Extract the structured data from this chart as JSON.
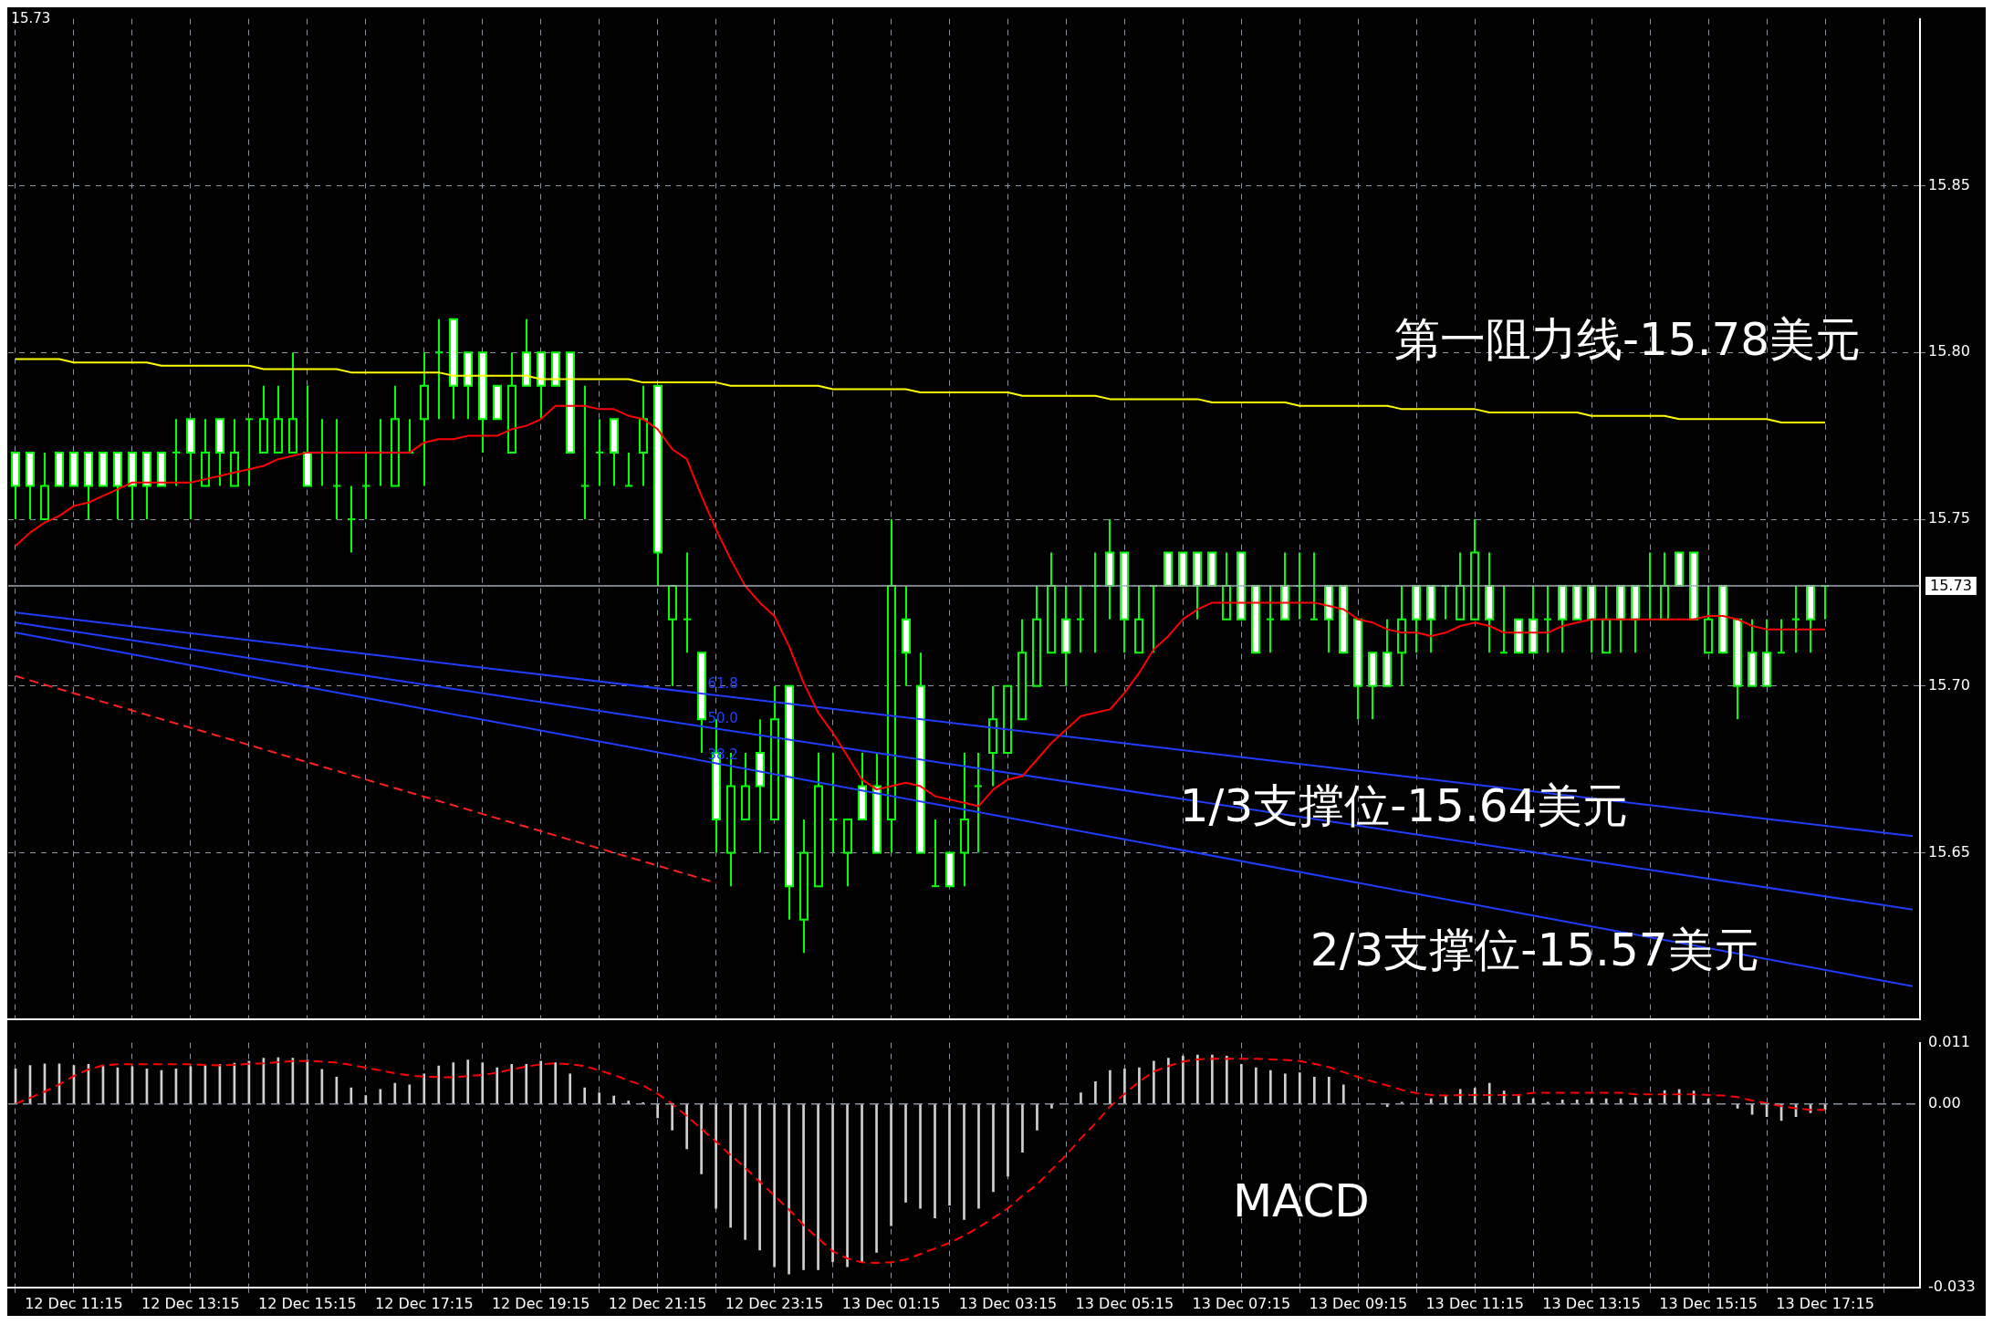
{
  "chart_data": [
    {
      "type": "candlestick",
      "color": "#00ff00",
      "categories": [
        null,
        null,
        null,
        null,
        null,
        null,
        null,
        null,
        null,
        null,
        null,
        null,
        null,
        null,
        null,
        null,
        null,
        null,
        null,
        null,
        null,
        null,
        null,
        null,
        null,
        null,
        null,
        null,
        null,
        null,
        null,
        null,
        null,
        null,
        null,
        null,
        null,
        null,
        null,
        null,
        null,
        null,
        null,
        null,
        null,
        null,
        null,
        null,
        null,
        null,
        null,
        null,
        null,
        null,
        null,
        null,
        null,
        null,
        null,
        null,
        null,
        null,
        null,
        null,
        null,
        null,
        null,
        null,
        null,
        null,
        null,
        null,
        null,
        null,
        null,
        null,
        null,
        null,
        null,
        null,
        null,
        null,
        null,
        null,
        null,
        null,
        null,
        null,
        null,
        null,
        null,
        null,
        null,
        null,
        null,
        null,
        null,
        null,
        null,
        null,
        null,
        null,
        null,
        null,
        null,
        null,
        null,
        null,
        null,
        null,
        null,
        null,
        null,
        null,
        null,
        null,
        null,
        null,
        null,
        null,
        null,
        null,
        null,
        null,
        null,
        null,
        null,
        null,
        null,
        null,
        null
      ],
      "colors": [
        "#ffffff",
        "#ffffff",
        "#000000",
        "#ffffff",
        "#ffffff",
        "#ffffff",
        "#ffffff",
        "#ffffff",
        "#ffffff",
        "#ffffff",
        "#ffffff",
        "#00ff00",
        "#ffffff",
        "#000000",
        "#ffffff",
        "#000000",
        "#00ff00",
        "#000000",
        "#000000",
        "#000000",
        "#ffffff",
        "#00ff00",
        "#00ff00",
        "#00ff00",
        "#00ff00",
        "#00ff00",
        "#000000",
        "#00ff00",
        "#000000",
        "#00ff00",
        "#ffffff",
        "#ffffff",
        "#ffffff",
        "#ffffff",
        "#000000",
        "#ffffff",
        "#ffffff",
        "#ffffff",
        "#ffffff",
        "#00ff00",
        "#00ff00",
        "#ffffff",
        "#00ff00",
        "#000000",
        "#ffffff",
        "#000000",
        "#00ff00",
        "#ffffff",
        "#ffffff",
        "#000000",
        "#000000",
        "#ffffff",
        "#000000",
        "#ffffff",
        "#000000",
        "#000000",
        "#00ff00",
        "#000000",
        "#ffffff",
        "#ffffff",
        "#000000",
        "#ffffff",
        "#ffffff",
        "#00ff00",
        "#ffffff",
        "#000000",
        "#00ff00",
        "#000000",
        "#000000",
        "#000000",
        "#000000",
        "#000000",
        "#ffffff",
        "#00ff00",
        "#00ff00",
        "#ffffff",
        "#ffffff",
        "#000000",
        "#00ff00",
        "#ffffff",
        "#ffffff",
        "#ffffff",
        "#ffffff",
        "#000000",
        "#ffffff",
        "#ffffff",
        "#00ff00",
        "#ffffff",
        "#00ff00",
        "#00ff00",
        "#ffffff",
        "#ffffff",
        "#ffffff",
        "#ffffff",
        "#ffffff",
        "#000000",
        "#ffffff",
        "#ffffff",
        "#00ff00",
        "#000000",
        "#000000",
        "#ffffff",
        "#00ff00",
        "#ffffff",
        "#ffffff",
        "#00ff00",
        "#ffffff",
        "#ffffff",
        "#ffffff",
        "#000000",
        "#ffffff",
        "#ffffff",
        "#00ff00",
        "#000000",
        "#ffffff",
        "#ffffff",
        "#000000",
        "#ffffff",
        "#ffffff",
        "#ffffff",
        "#ffffff",
        "#00ff00",
        "#00ff00",
        "#ffffff",
        "#00ff00",
        null,
        null,
        null,
        null,
        null,
        null
      ],
      "ohlc": [
        [
          15.77,
          15.77,
          15.75,
          15.76
        ],
        [
          15.77,
          15.77,
          15.75,
          15.76
        ],
        [
          15.75,
          15.77,
          15.75,
          15.76
        ],
        [
          15.77,
          15.77,
          15.76,
          15.76
        ],
        [
          15.77,
          15.77,
          15.76,
          15.76
        ],
        [
          15.77,
          15.77,
          15.75,
          15.76
        ],
        [
          15.77,
          15.77,
          15.76,
          15.76
        ],
        [
          15.77,
          15.77,
          15.75,
          15.76
        ],
        [
          15.77,
          15.77,
          15.75,
          15.76
        ],
        [
          15.77,
          15.77,
          15.75,
          15.76
        ],
        [
          15.77,
          15.77,
          15.76,
          15.76
        ],
        [
          15.77,
          15.78,
          15.76,
          15.77
        ],
        [
          15.78,
          15.78,
          15.75,
          15.77
        ],
        [
          15.76,
          15.78,
          15.76,
          15.77
        ],
        [
          15.78,
          15.78,
          15.76,
          15.77
        ],
        [
          15.76,
          15.78,
          15.76,
          15.77
        ],
        [
          15.78,
          15.78,
          15.76,
          15.78
        ],
        [
          15.77,
          15.79,
          15.77,
          15.78
        ],
        [
          15.77,
          15.79,
          15.77,
          15.78
        ],
        [
          15.77,
          15.8,
          15.77,
          15.78
        ],
        [
          15.77,
          15.79,
          15.76,
          15.76
        ],
        [
          15.77,
          15.78,
          15.76,
          15.77
        ],
        [
          15.76,
          15.78,
          15.75,
          15.76
        ],
        [
          15.75,
          15.76,
          15.74,
          15.75
        ],
        [
          15.76,
          15.77,
          15.75,
          15.76
        ],
        [
          15.77,
          15.78,
          15.76,
          15.77
        ],
        [
          15.76,
          15.79,
          15.76,
          15.78
        ],
        [
          15.77,
          15.78,
          15.77,
          15.77
        ],
        [
          15.78,
          15.8,
          15.76,
          15.79
        ],
        [
          15.8,
          15.81,
          15.78,
          15.8
        ],
        [
          15.81,
          15.81,
          15.78,
          15.79
        ],
        [
          15.8,
          15.8,
          15.78,
          15.79
        ],
        [
          15.8,
          15.8,
          15.77,
          15.78
        ],
        [
          15.79,
          15.79,
          15.78,
          15.78
        ],
        [
          15.77,
          15.8,
          15.77,
          15.79
        ],
        [
          15.8,
          15.81,
          15.79,
          15.79
        ],
        [
          15.8,
          15.8,
          15.78,
          15.79
        ],
        [
          15.8,
          15.8,
          15.79,
          15.79
        ],
        [
          15.8,
          15.8,
          15.77,
          15.77
        ],
        [
          15.76,
          15.79,
          15.75,
          15.76
        ],
        [
          15.77,
          15.78,
          15.76,
          15.77
        ],
        [
          15.78,
          15.78,
          15.76,
          15.77
        ],
        [
          15.76,
          15.77,
          15.76,
          15.76
        ],
        [
          15.77,
          15.79,
          15.76,
          15.78
        ],
        [
          15.79,
          15.79,
          15.73,
          15.74
        ],
        [
          15.72,
          15.73,
          15.7,
          15.73
        ],
        [
          15.72,
          15.74,
          15.71,
          15.72
        ],
        [
          15.71,
          15.71,
          15.68,
          15.69
        ],
        [
          15.68,
          15.69,
          15.65,
          15.66
        ],
        [
          15.65,
          15.68,
          15.64,
          15.67
        ],
        [
          15.66,
          15.68,
          15.66,
          15.67
        ],
        [
          15.68,
          15.69,
          15.65,
          15.67
        ],
        [
          15.66,
          15.7,
          15.66,
          15.69
        ],
        [
          15.7,
          15.7,
          15.63,
          15.64
        ],
        [
          15.63,
          15.66,
          15.62,
          15.65
        ],
        [
          15.64,
          15.68,
          15.64,
          15.67
        ],
        [
          15.66,
          15.68,
          15.65,
          15.66
        ],
        [
          15.65,
          15.66,
          15.64,
          15.66
        ],
        [
          15.67,
          15.68,
          15.66,
          15.66
        ],
        [
          15.67,
          15.68,
          15.65,
          15.65
        ],
        [
          15.66,
          15.75,
          15.65,
          15.73
        ],
        [
          15.72,
          15.73,
          15.7,
          15.71
        ],
        [
          15.7,
          15.71,
          15.65,
          15.65
        ],
        [
          15.64,
          15.66,
          15.64,
          15.64
        ],
        [
          15.65,
          15.65,
          15.64,
          15.64
        ],
        [
          15.65,
          15.68,
          15.64,
          15.66
        ],
        [
          15.67,
          15.68,
          15.65,
          15.67
        ],
        [
          15.68,
          15.7,
          15.67,
          15.69
        ],
        [
          15.68,
          15.7,
          15.68,
          15.7
        ],
        [
          15.69,
          15.72,
          15.69,
          15.71
        ],
        [
          15.7,
          15.73,
          15.7,
          15.72
        ],
        [
          15.71,
          15.74,
          15.71,
          15.73
        ],
        [
          15.72,
          15.73,
          15.7,
          15.71
        ],
        [
          15.72,
          15.73,
          15.71,
          15.72
        ],
        [
          15.73,
          15.74,
          15.71,
          15.73
        ],
        [
          15.74,
          15.75,
          15.72,
          15.73
        ],
        [
          15.74,
          15.74,
          15.71,
          15.72
        ],
        [
          15.71,
          15.73,
          15.71,
          15.72
        ],
        [
          15.73,
          15.73,
          15.71,
          15.73
        ],
        [
          15.74,
          15.74,
          15.73,
          15.73
        ],
        [
          15.74,
          15.74,
          15.73,
          15.73
        ],
        [
          15.74,
          15.74,
          15.72,
          15.73
        ],
        [
          15.74,
          15.74,
          15.73,
          15.73
        ],
        [
          15.72,
          15.74,
          15.72,
          15.73
        ],
        [
          15.74,
          15.74,
          15.72,
          15.72
        ],
        [
          15.73,
          15.73,
          15.71,
          15.71
        ],
        [
          15.72,
          15.73,
          15.71,
          15.72
        ],
        [
          15.73,
          15.74,
          15.72,
          15.72
        ],
        [
          15.73,
          15.74,
          15.72,
          15.73
        ],
        [
          15.72,
          15.74,
          15.72,
          15.72
        ],
        [
          15.73,
          15.73,
          15.71,
          15.72
        ],
        [
          15.73,
          15.73,
          15.71,
          15.71
        ],
        [
          15.72,
          15.72,
          15.69,
          15.7
        ],
        [
          15.71,
          15.71,
          15.69,
          15.7
        ],
        [
          15.71,
          15.72,
          15.7,
          15.7
        ],
        [
          15.71,
          15.73,
          15.7,
          15.72
        ],
        [
          15.73,
          15.73,
          15.71,
          15.72
        ],
        [
          15.73,
          15.73,
          15.71,
          15.72
        ],
        [
          15.73,
          15.73,
          15.72,
          15.73
        ],
        [
          15.72,
          15.74,
          15.72,
          15.73
        ],
        [
          15.72,
          15.75,
          15.72,
          15.74
        ],
        [
          15.73,
          15.74,
          15.71,
          15.72
        ],
        [
          15.71,
          15.73,
          15.71,
          15.71
        ],
        [
          15.72,
          15.72,
          15.71,
          15.71
        ],
        [
          15.72,
          15.73,
          15.71,
          15.71
        ],
        [
          15.72,
          15.73,
          15.71,
          15.72
        ],
        [
          15.73,
          15.73,
          15.71,
          15.72
        ],
        [
          15.73,
          15.73,
          15.72,
          15.72
        ],
        [
          15.73,
          15.73,
          15.71,
          15.72
        ],
        [
          15.71,
          15.73,
          15.71,
          15.72
        ],
        [
          15.73,
          15.73,
          15.71,
          15.72
        ],
        [
          15.73,
          15.73,
          15.71,
          15.72
        ],
        [
          15.73,
          15.74,
          15.72,
          15.73
        ],
        [
          15.72,
          15.74,
          15.72,
          15.73
        ],
        [
          15.74,
          15.74,
          15.73,
          15.73
        ],
        [
          15.74,
          15.74,
          15.72,
          15.72
        ],
        [
          15.71,
          15.73,
          15.71,
          15.72
        ],
        [
          15.73,
          15.73,
          15.71,
          15.71
        ],
        [
          15.72,
          15.72,
          15.69,
          15.7
        ],
        [
          15.71,
          15.72,
          15.7,
          15.7
        ],
        [
          15.71,
          15.72,
          15.7,
          15.7
        ],
        [
          15.71,
          15.72,
          15.71,
          15.71
        ],
        [
          15.72,
          15.73,
          15.71,
          15.72
        ],
        [
          15.73,
          15.73,
          15.71,
          15.72
        ],
        [
          15.73,
          15.73,
          15.72,
          15.73
        ],
        null,
        null,
        null,
        null,
        null,
        null
      ],
      "series": [
        {
          "type": "line",
          "color": "#ffff00",
          "values": [
            15.798,
            15.798,
            15.798,
            15.798,
            15.797,
            15.797,
            15.797,
            15.797,
            15.797,
            15.797,
            15.796,
            15.796,
            15.796,
            15.796,
            15.796,
            15.796,
            15.796,
            15.795,
            15.795,
            15.795,
            15.795,
            15.795,
            15.795,
            15.794,
            15.794,
            15.794,
            15.794,
            15.794,
            15.794,
            15.794,
            15.793,
            15.793,
            15.793,
            15.793,
            15.793,
            15.793,
            15.792,
            15.792,
            15.792,
            15.792,
            15.792,
            15.792,
            15.792,
            15.791,
            15.791,
            15.791,
            15.791,
            15.791,
            15.791,
            15.79,
            15.79,
            15.79,
            15.79,
            15.79,
            15.79,
            15.79,
            15.789,
            15.789,
            15.789,
            15.789,
            15.789,
            15.789,
            15.788,
            15.788,
            15.788,
            15.788,
            15.788,
            15.788,
            15.788,
            15.787,
            15.787,
            15.787,
            15.787,
            15.787,
            15.787,
            15.786,
            15.786,
            15.786,
            15.786,
            15.786,
            15.786,
            15.786,
            15.785,
            15.785,
            15.785,
            15.785,
            15.785,
            15.785,
            15.784,
            15.784,
            15.784,
            15.784,
            15.784,
            15.784,
            15.784,
            15.783,
            15.783,
            15.783,
            15.783,
            15.783,
            15.783,
            15.782,
            15.782,
            15.782,
            15.782,
            15.782,
            15.782,
            15.782,
            15.781,
            15.781,
            15.781,
            15.781,
            15.781,
            15.781,
            15.78,
            15.78,
            15.78,
            15.78,
            15.78,
            15.78,
            15.78,
            15.779,
            15.779,
            15.779,
            15.779,
            null,
            null,
            null,
            null,
            null,
            null
          ]
        },
        {
          "type": "line",
          "color": "#ff0000",
          "values": [
            15.742,
            15.746,
            15.749,
            15.751,
            15.754,
            15.755,
            15.757,
            15.759,
            15.761,
            15.761,
            15.761,
            15.761,
            15.761,
            15.762,
            15.763,
            15.764,
            15.765,
            15.766,
            15.768,
            15.769,
            15.77,
            15.77,
            15.77,
            15.77,
            15.77,
            15.77,
            15.77,
            15.77,
            15.773,
            15.774,
            15.774,
            15.775,
            15.775,
            15.775,
            15.777,
            15.778,
            15.78,
            15.784,
            15.784,
            15.784,
            15.783,
            15.783,
            15.781,
            15.78,
            15.777,
            15.771,
            15.768,
            15.757,
            15.747,
            15.738,
            15.73,
            15.725,
            15.721,
            15.712,
            15.701,
            15.692,
            15.686,
            15.679,
            15.672,
            15.669,
            15.67,
            15.671,
            15.67,
            15.667,
            15.666,
            15.665,
            15.664,
            15.669,
            15.672,
            15.673,
            15.678,
            15.683,
            15.687,
            15.691,
            15.692,
            15.693,
            15.698,
            15.704,
            15.711,
            15.715,
            15.72,
            15.723,
            15.725,
            15.725,
            15.725,
            15.725,
            15.725,
            15.725,
            15.725,
            15.725,
            15.724,
            15.723,
            15.72,
            15.719,
            15.717,
            15.716,
            15.716,
            15.715,
            15.716,
            15.718,
            15.719,
            15.718,
            15.716,
            15.716,
            15.716,
            15.716,
            15.718,
            15.719,
            15.72,
            15.72,
            15.72,
            15.72,
            15.72,
            15.72,
            15.72,
            15.72,
            15.721,
            15.721,
            15.72,
            15.718,
            15.717,
            15.717,
            15.717,
            15.717,
            15.717,
            null,
            null,
            null,
            null,
            null,
            null
          ]
        },
        {
          "type": "line",
          "color": "#ff2020",
          "line_style": "dashed",
          "values": [
            15.703,
            null,
            null,
            null,
            null,
            null,
            null,
            null,
            null,
            null,
            null,
            null,
            null,
            null,
            null,
            null,
            null,
            null,
            null,
            null,
            null,
            null,
            null,
            null,
            null,
            null,
            null,
            null,
            null,
            null,
            null,
            null,
            null,
            null,
            null,
            null,
            null,
            null,
            null,
            null,
            null,
            null,
            null,
            null,
            null,
            null,
            null,
            null,
            15.641,
            null,
            null,
            null,
            null,
            null,
            null,
            null,
            null,
            null,
            null,
            null,
            null,
            null,
            null,
            null,
            null,
            null,
            null,
            null,
            null,
            null,
            null,
            null,
            null,
            null,
            null,
            null,
            null,
            null,
            null,
            null,
            null,
            null,
            null,
            null,
            null,
            null,
            null,
            null,
            null,
            null,
            null,
            null,
            null,
            null,
            null,
            null,
            null,
            null,
            null,
            null,
            null,
            null,
            null,
            null,
            null,
            null,
            null,
            null,
            null,
            null,
            null,
            null,
            null,
            null,
            null,
            null,
            null,
            null,
            null,
            null,
            null,
            null,
            null,
            null,
            null,
            null,
            null,
            null,
            null,
            null,
            null
          ]
        },
        {
          "type": "line",
          "color": "#1f3dff",
          "values": [
            15.722,
            null,
            null,
            null,
            null,
            null,
            null,
            null,
            null,
            null,
            null,
            null,
            null,
            null,
            null,
            null,
            null,
            null,
            null,
            null,
            null,
            null,
            null,
            null,
            null,
            null,
            null,
            null,
            null,
            null,
            null,
            null,
            null,
            null,
            null,
            null,
            null,
            null,
            null,
            null,
            null,
            null,
            null,
            null,
            null,
            null,
            null,
            null,
            null,
            null,
            null,
            null,
            null,
            null,
            null,
            null,
            null,
            null,
            null,
            null,
            null,
            null,
            null,
            null,
            null,
            null,
            null,
            null,
            null,
            null,
            null,
            null,
            null,
            null,
            null,
            null,
            null,
            null,
            null,
            null,
            null,
            null,
            null,
            null,
            null,
            null,
            null,
            null,
            null,
            null,
            null,
            null,
            null,
            null,
            null,
            null,
            null,
            null,
            null,
            null,
            null,
            null,
            null,
            null,
            null,
            null,
            null,
            null,
            null,
            null,
            null,
            null,
            null,
            null,
            null,
            null,
            null,
            null,
            null,
            null,
            null,
            null,
            null,
            null,
            null,
            null,
            null,
            null,
            null,
            null,
            15.655
          ]
        },
        {
          "type": "line",
          "color": "#1f3dff",
          "values": [
            15.719,
            null,
            null,
            null,
            null,
            null,
            null,
            null,
            null,
            null,
            null,
            null,
            null,
            null,
            null,
            null,
            null,
            null,
            null,
            null,
            null,
            null,
            null,
            null,
            null,
            null,
            null,
            null,
            null,
            null,
            null,
            null,
            null,
            null,
            null,
            null,
            null,
            null,
            null,
            null,
            null,
            null,
            null,
            null,
            null,
            null,
            null,
            null,
            null,
            null,
            null,
            null,
            null,
            null,
            null,
            null,
            null,
            null,
            null,
            null,
            null,
            null,
            null,
            null,
            null,
            null,
            null,
            null,
            null,
            null,
            null,
            null,
            null,
            null,
            null,
            null,
            null,
            null,
            null,
            null,
            null,
            null,
            null,
            null,
            null,
            null,
            null,
            null,
            null,
            null,
            null,
            null,
            null,
            null,
            null,
            null,
            null,
            null,
            null,
            null,
            null,
            null,
            null,
            null,
            null,
            null,
            null,
            null,
            null,
            null,
            null,
            null,
            null,
            null,
            null,
            null,
            null,
            null,
            null,
            null,
            null,
            null,
            null,
            null,
            null,
            null,
            null,
            null,
            null,
            null,
            15.633
          ]
        },
        {
          "type": "line",
          "color": "#1f3dff",
          "values": [
            15.716,
            null,
            null,
            null,
            null,
            null,
            null,
            null,
            null,
            null,
            null,
            null,
            null,
            null,
            null,
            null,
            null,
            null,
            null,
            null,
            null,
            null,
            null,
            null,
            null,
            null,
            null,
            null,
            null,
            null,
            null,
            null,
            null,
            null,
            null,
            null,
            null,
            null,
            null,
            null,
            null,
            null,
            null,
            null,
            null,
            null,
            null,
            null,
            null,
            null,
            null,
            null,
            null,
            null,
            null,
            null,
            null,
            null,
            null,
            null,
            null,
            null,
            null,
            null,
            null,
            null,
            null,
            null,
            null,
            null,
            null,
            null,
            null,
            null,
            null,
            null,
            null,
            null,
            null,
            null,
            null,
            null,
            null,
            null,
            null,
            null,
            null,
            null,
            null,
            null,
            null,
            null,
            null,
            null,
            null,
            null,
            null,
            null,
            null,
            null,
            null,
            null,
            null,
            null,
            null,
            null,
            null,
            null,
            null,
            null,
            null,
            null,
            null,
            null,
            null,
            null,
            null,
            null,
            null,
            null,
            null,
            null,
            null,
            null,
            null,
            null,
            null,
            null,
            null,
            null,
            15.61
          ]
        }
      ],
      "ylim": [
        15.6,
        15.9
      ],
      "yticks": [
        15.65,
        {
          "value": 15.7,
          "label": "15.70"
        },
        15.75,
        {
          "value": 15.8,
          "label": "15.80"
        },
        15.85
      ],
      "ref_lines": [
        {
          "axis": "y",
          "value": 15.73,
          "label": "15.73",
          "color": "#a0a8b4"
        }
      ],
      "annotations": [
        "15.73",
        "61.8",
        "50.0",
        "38.2",
        "第一阻力线-15.78美元",
        "1/3支撑位-15.64美元",
        "2/3支撑位-15.57美元"
      ],
      "grid": true,
      "legend": false,
      "tick_labels": "y"
    },
    {
      "type": "bar",
      "categories": [
        null,
        null,
        null,
        null,
        "12 Dec 11:15",
        null,
        null,
        null,
        null,
        null,
        null,
        null,
        "12 Dec 13:15",
        null,
        null,
        null,
        null,
        null,
        null,
        null,
        "12 Dec 15:15",
        null,
        null,
        null,
        null,
        null,
        null,
        null,
        "12 Dec 17:15",
        null,
        null,
        null,
        null,
        null,
        null,
        null,
        "12 Dec 19:15",
        null,
        null,
        null,
        null,
        null,
        null,
        null,
        "12 Dec 21:15",
        null,
        null,
        null,
        null,
        null,
        null,
        null,
        "12 Dec 23:15",
        null,
        null,
        null,
        null,
        null,
        null,
        null,
        "13 Dec 01:15",
        null,
        null,
        null,
        null,
        null,
        null,
        null,
        "13 Dec 03:15",
        null,
        null,
        null,
        null,
        null,
        null,
        null,
        "13 Dec 05:15",
        null,
        null,
        null,
        null,
        null,
        null,
        null,
        "13 Dec 07:15",
        null,
        null,
        null,
        null,
        null,
        null,
        null,
        "13 Dec 09:15",
        null,
        null,
        null,
        null,
        null,
        null,
        null,
        "13 Dec 11:15",
        null,
        null,
        null,
        null,
        null,
        null,
        null,
        "13 Dec 13:15",
        null,
        null,
        null,
        null,
        null,
        null,
        null,
        "13 Dec 15:15",
        null,
        null,
        null,
        null,
        null,
        null,
        null,
        "13 Dec 17:15",
        null,
        null,
        null,
        null,
        null,
        null
      ],
      "series": [
        {
          "type": "bar",
          "color": "#d0d0d0",
          "values": [
            0.0063,
            0.0069,
            0.0072,
            0.0072,
            0.0069,
            0.0071,
            0.0069,
            0.0065,
            0.0067,
            0.0063,
            0.006,
            0.0063,
            0.0067,
            0.0069,
            0.0071,
            0.0073,
            0.0077,
            0.0082,
            0.0083,
            0.0082,
            0.0079,
            0.0062,
            0.0048,
            0.0029,
            0.0015,
            0.0026,
            0.0037,
            0.0034,
            0.0054,
            0.0068,
            0.0074,
            0.0079,
            0.0074,
            0.0065,
            0.0071,
            0.0071,
            0.0077,
            0.0074,
            0.0054,
            0.0029,
            0.002,
            0.0014,
            0.0005,
            0.0002,
            -0.0025,
            -0.0047,
            -0.0081,
            -0.0126,
            -0.0188,
            -0.0222,
            -0.0244,
            -0.0263,
            -0.0293,
            -0.0306,
            -0.0298,
            -0.0298,
            -0.0284,
            -0.0293,
            -0.0284,
            -0.0267,
            -0.0219,
            -0.0177,
            -0.0188,
            -0.0205,
            -0.0182,
            -0.0208,
            -0.0188,
            -0.0158,
            -0.013,
            -0.0087,
            -0.0047,
            -0.0008,
            0,
            0.002,
            0.004,
            0.006,
            0.0063,
            0.0065,
            0.0077,
            0.0082,
            0.0086,
            0.0088,
            0.0088,
            0.0086,
            0.0071,
            0.0065,
            0.006,
            0.0054,
            0.0056,
            0.0048,
            0.0048,
            0.0034,
            0,
            0,
            -0.0005,
            0.0003,
            0,
            0.0009,
            0.0015,
            0.0026,
            0.0028,
            0.0037,
            0.0023,
            0.0015,
            0.0009,
            0.0003,
            0.0007,
            0.0007,
            0.0009,
            0.0009,
            0.0009,
            0.0011,
            0.0009,
            0.0024,
            0.0026,
            0.0023,
            0.0009,
            0,
            -0.0008,
            -0.0019,
            -0.0023,
            -0.003,
            -0.0023,
            -0.0016,
            -0.001,
            null,
            null,
            null,
            null,
            null,
            null
          ]
        },
        {
          "type": "line",
          "color": "#ff0000",
          "line_style": "dashed",
          "values": [
            0,
            0.0011,
            0.0022,
            0.0035,
            0.005,
            0.0062,
            0.0069,
            0.0071,
            0.0071,
            0.0071,
            0.0071,
            0.0071,
            0.0071,
            0.007,
            0.0069,
            0.007,
            0.0072,
            0.0073,
            0.0075,
            0.0077,
            0.0077,
            0.0076,
            0.0074,
            0.007,
            0.0065,
            0.006,
            0.0055,
            0.0051,
            0.0049,
            0.0048,
            0.0048,
            0.005,
            0.0052,
            0.0056,
            0.0062,
            0.0067,
            0.0071,
            0.0073,
            0.0071,
            0.0068,
            0.006,
            0.0052,
            0.0042,
            0.0033,
            0.0018,
            0,
            -0.0022,
            -0.0045,
            -0.0068,
            -0.0092,
            -0.0115,
            -0.014,
            -0.0165,
            -0.019,
            -0.0218,
            -0.0242,
            -0.0265,
            -0.0278,
            -0.0285,
            -0.0286,
            -0.0285,
            -0.028,
            -0.027,
            -0.026,
            -0.025,
            -0.0237,
            -0.0222,
            -0.0205,
            -0.0188,
            -0.0165,
            -0.0145,
            -0.0118,
            -0.0092,
            -0.0062,
            -0.0035,
            -0.0005,
            0.0018,
            0.004,
            0.0058,
            0.0068,
            0.0076,
            0.008,
            0.0081,
            0.0081,
            0.0081,
            0.0081,
            0.008,
            0.0079,
            0.0077,
            0.0072,
            0.0066,
            0.0057,
            0.0048,
            0.004,
            0.0033,
            0.0025,
            0.0019,
            0.0016,
            0.0015,
            0.0016,
            0.0016,
            0.0016,
            0.0016,
            0.0016,
            0.002,
            0.002,
            0.002,
            0.002,
            0.002,
            0.002,
            0.002,
            0.0017,
            0.0017,
            0.0017,
            0.0017,
            0.0017,
            0.0016,
            0.0015,
            0.0012,
            0.0006,
            0.0001,
            -0.0004,
            -0.0008,
            -0.0011,
            -0.0011,
            null,
            null,
            null,
            null,
            null,
            null
          ]
        }
      ],
      "ylim": [
        -0.033,
        0.011
      ],
      "yticks": [
        -0.033,
        {
          "value": 0,
          "label": "0.00"
        },
        0.011
      ],
      "ref_lines": [
        {
          "axis": "y",
          "value": 0,
          "color": "#8a94a0",
          "line_style": "dashed"
        }
      ],
      "annotations": [
        "MACD"
      ],
      "grid": "x",
      "legend": false
    }
  ]
}
